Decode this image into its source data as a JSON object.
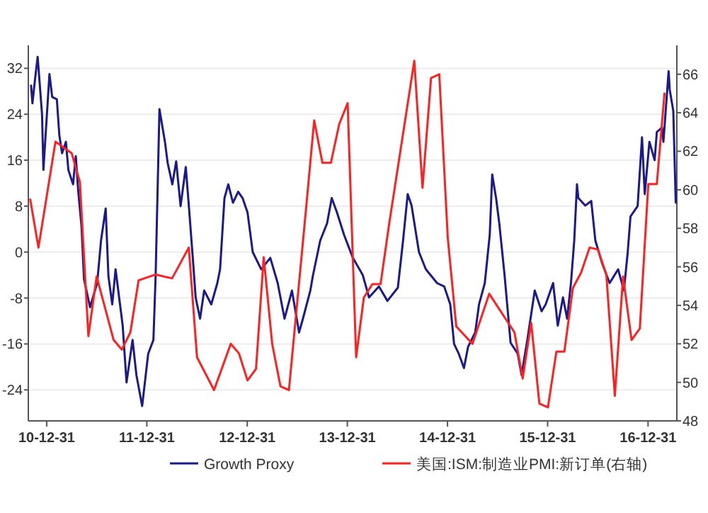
{
  "chart_data": {
    "type": "line",
    "xlim": [
      "2010-10-25",
      "2017-04-15"
    ],
    "xticks": [
      {
        "value": "2010-12-31",
        "label": "10-12-31"
      },
      {
        "value": "2011-12-31",
        "label": "11-12-31"
      },
      {
        "value": "2012-12-31",
        "label": "12-12-31"
      },
      {
        "value": "2013-12-31",
        "label": "13-12-31"
      },
      {
        "value": "2014-12-31",
        "label": "14-12-31"
      },
      {
        "value": "2015-12-31",
        "label": "15-12-31"
      },
      {
        "value": "2016-12-31",
        "label": "16-12-31"
      }
    ],
    "ylim": [
      -29.4,
      36
    ],
    "yticks": [
      -24,
      -16,
      -8,
      0,
      8,
      16,
      24,
      32
    ],
    "y2lim": [
      48,
      67.5
    ],
    "y2ticks": [
      48,
      50,
      52,
      54,
      56,
      58,
      60,
      62,
      64,
      66
    ],
    "grid": "y",
    "legend": "bottom",
    "marker": "none",
    "line_style": "solid",
    "series": [
      {
        "name": "Growth Proxy",
        "color": "#1a1a8c",
        "axis": "y",
        "x": [
          "2010-11-04",
          "2010-11-09",
          "2010-11-19",
          "2010-11-28",
          "2010-12-14",
          "2010-12-19",
          "2011-01-10",
          "2011-01-20",
          "2011-02-06",
          "2011-02-15",
          "2011-02-25",
          "2011-03-11",
          "2011-03-20",
          "2011-04-06",
          "2011-04-16",
          "2011-04-25",
          "2011-05-07",
          "2011-05-16",
          "2011-06-07",
          "2011-07-03",
          "2011-07-17",
          "2011-08-03",
          "2011-08-13",
          "2011-08-27",
          "2011-09-08",
          "2011-10-04",
          "2011-10-18",
          "2011-11-09",
          "2011-11-23",
          "2011-12-14",
          "2012-01-05",
          "2012-01-24",
          "2012-02-01",
          "2012-02-15",
          "2012-03-06",
          "2012-03-16",
          "2012-04-02",
          "2012-04-16",
          "2012-05-02",
          "2012-05-21",
          "2012-06-03",
          "2012-06-17",
          "2012-06-26",
          "2012-07-12",
          "2012-07-27",
          "2012-08-22",
          "2012-09-13",
          "2012-09-23",
          "2012-10-09",
          "2012-10-23",
          "2012-11-09",
          "2012-11-28",
          "2012-12-14",
          "2013-01-01",
          "2013-01-20",
          "2013-02-20",
          "2013-03-25",
          "2013-04-21",
          "2013-05-16",
          "2013-06-12",
          "2013-07-08",
          "2013-07-22",
          "2013-08-18",
          "2013-08-27",
          "2013-09-23",
          "2013-10-18",
          "2013-11-04",
          "2013-11-23",
          "2013-12-19",
          "2014-01-20",
          "2014-02-25",
          "2014-03-20",
          "2014-04-25",
          "2014-05-26",
          "2014-07-03",
          "2014-07-22",
          "2014-08-08",
          "2014-08-22",
          "2014-09-18",
          "2014-10-13",
          "2014-11-23",
          "2014-12-19",
          "2015-01-10",
          "2015-01-24",
          "2015-02-10",
          "2015-03-01",
          "2015-03-16",
          "2015-04-11",
          "2015-04-25",
          "2015-05-16",
          "2015-06-03",
          "2015-06-12",
          "2015-06-26",
          "2015-07-08",
          "2015-07-27",
          "2015-08-18",
          "2015-09-13",
          "2015-09-27",
          "2015-10-18",
          "2015-11-14",
          "2015-12-09",
          "2015-12-24",
          "2016-01-20",
          "2016-02-06",
          "2016-02-25",
          "2016-03-11",
          "2016-03-25",
          "2016-04-06",
          "2016-04-16",
          "2016-04-21",
          "2016-05-16",
          "2016-06-07",
          "2016-06-22",
          "2016-07-17",
          "2016-08-13",
          "2016-09-13",
          "2016-10-04",
          "2016-10-18",
          "2016-10-28",
          "2016-11-23",
          "2016-12-09",
          "2016-12-19",
          "2017-01-05",
          "2017-01-24",
          "2017-02-01",
          "2017-02-20",
          "2017-02-25",
          "2017-03-16",
          "2017-03-20",
          "2017-04-02",
          "2017-04-11"
        ],
        "values": [
          29,
          25.9,
          30.3,
          34,
          24,
          14.3,
          31,
          27,
          26.6,
          20.4,
          17.2,
          19.2,
          14.3,
          11.8,
          16.7,
          10.6,
          4.4,
          -4.7,
          -9.6,
          -5.4,
          2,
          7.6,
          -4.2,
          -9.1,
          -3,
          -12.8,
          -22.7,
          -15.3,
          -21.4,
          -26.8,
          -17.7,
          -15.3,
          -4.2,
          24.9,
          19.2,
          15.5,
          11.8,
          15.8,
          8,
          14.8,
          6.9,
          -2,
          -7.9,
          -11.6,
          -6.7,
          -9.1,
          -5.4,
          -3,
          9.4,
          11.8,
          8.6,
          10.5,
          9.4,
          6.9,
          0,
          -3,
          -1,
          -5.4,
          -11.6,
          -6.7,
          -14,
          -11.6,
          -6.7,
          -4.2,
          2,
          5,
          9.4,
          6.9,
          3,
          -1,
          -4,
          -7.9,
          -6,
          -8.5,
          -6.2,
          2,
          10.1,
          8.1,
          0,
          -3,
          -5.4,
          -6,
          -9.1,
          -16,
          -17.7,
          -20.2,
          -16.5,
          -14,
          -9.1,
          -5.4,
          3,
          13.5,
          9.4,
          4.9,
          -4,
          -15.8,
          -17.7,
          -21.4,
          -15.3,
          -6.7,
          -10.3,
          -9.1,
          -5.4,
          -12.8,
          -7.9,
          -11.6,
          -5.4,
          2,
          11.8,
          9.4,
          8.1,
          8.9,
          2,
          -2,
          -5.4,
          -3,
          -6.7,
          0,
          6.2,
          8,
          20,
          10.1,
          19.2,
          16,
          20.9,
          21.7,
          19.2,
          31.5,
          28.3,
          24.6,
          8.6
        ]
      },
      {
        "name": "美国:ISM:制造业PMI:新订单(右轴)",
        "color": "#ff2020",
        "axis": "y2",
        "x": [
          "2010-11",
          "2010-12",
          "2011-02",
          "2011-04",
          "2011-05",
          "2011-06",
          "2011-07",
          "2011-09",
          "2011-10",
          "2011-11",
          "2011-12",
          "2012-02",
          "2012-04",
          "2012-06",
          "2012-07",
          "2012-09",
          "2012-11",
          "2012-12",
          "2013-01",
          "2013-02",
          "2013-03",
          "2013-04",
          "2013-05",
          "2013-06",
          "2013-08",
          "2013-09",
          "2013-10",
          "2013-11",
          "2013-12",
          "2014-01",
          "2014-02",
          "2014-03",
          "2014-04",
          "2014-05",
          "2014-06",
          "2014-09",
          "2014-10",
          "2014-11",
          "2014-12",
          "2015-01",
          "2015-02",
          "2015-04",
          "2015-06",
          "2015-09",
          "2015-10",
          "2015-11",
          "2015-12",
          "2016-01",
          "2016-02",
          "2016-03",
          "2016-04",
          "2016-05",
          "2016-06",
          "2016-07",
          "2016-08",
          "2016-09",
          "2016-10",
          "2016-11",
          "2016-12",
          "2017-01",
          "2017-02",
          "2017-03"
        ],
        "values": [
          59.5,
          57,
          62.5,
          61.9,
          60.4,
          52.4,
          55.5,
          52.2,
          51.7,
          52.6,
          55.3,
          55.6,
          55.4,
          57,
          51.3,
          49.6,
          52,
          51.5,
          50.1,
          50.7,
          56.5,
          52,
          49.8,
          49.6,
          58.8,
          63.6,
          61.4,
          61.4,
          63.4,
          64.5,
          51.3,
          54.4,
          55.1,
          55.1,
          58.2,
          66.7,
          60.1,
          65.8,
          66,
          57.5,
          52.9,
          52,
          54.6,
          52.6,
          50.2,
          53.1,
          48.9,
          48.7,
          51.6,
          51.6,
          54.9,
          55.7,
          57,
          56.9,
          55.6,
          49.3,
          55.5,
          52.2,
          52.8,
          60.3,
          60.3,
          65
        ]
      }
    ]
  }
}
